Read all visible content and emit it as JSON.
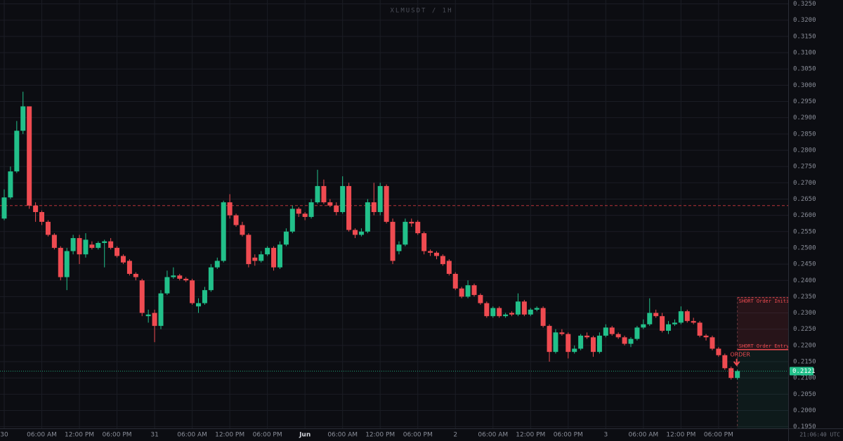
{
  "chart_data": {
    "type": "candlestick",
    "title": "XLMUSDT / 1H",
    "categories": [
      "30",
      null,
      null,
      null,
      null,
      null,
      "06:00 AM",
      null,
      null,
      null,
      null,
      null,
      "12:00 PM",
      null,
      null,
      null,
      null,
      null,
      "06:00 PM",
      null,
      null,
      null,
      null,
      null,
      "31",
      null,
      null,
      null,
      null,
      null,
      "06:00 AM",
      null,
      null,
      null,
      null,
      null,
      "12:00 PM",
      null,
      null,
      null,
      null,
      null,
      "06:00 PM",
      null,
      null,
      null,
      null,
      null,
      "Jun",
      null,
      null,
      null,
      null,
      null,
      "06:00 AM",
      null,
      null,
      null,
      null,
      null,
      "12:00 PM",
      null,
      null,
      null,
      null,
      null,
      "06:00 PM",
      null,
      null,
      null,
      null,
      null,
      "2",
      null,
      null,
      null,
      null,
      null,
      "06:00 AM",
      null,
      null,
      null,
      null,
      null,
      "12:00 PM",
      null,
      null,
      null,
      null,
      null,
      "06:00 PM",
      null,
      null,
      null,
      null,
      null,
      "3",
      null,
      null,
      null,
      null,
      null,
      "06:00 AM",
      null,
      null,
      null,
      null,
      null,
      "12:00 PM",
      null,
      null,
      null,
      null,
      null,
      "06:00 PM",
      null,
      null,
      null
    ],
    "open": [
      0.259,
      0.2655,
      0.2735,
      0.286,
      0.2935,
      0.263,
      0.261,
      0.258,
      0.254,
      0.25,
      0.241,
      0.249,
      0.253,
      0.248,
      0.251,
      0.25,
      0.2515,
      0.252,
      0.25,
      0.2475,
      0.246,
      0.242,
      0.24,
      0.229,
      0.23,
      0.226,
      0.236,
      0.241,
      0.2415,
      0.2405,
      0.24,
      0.232,
      0.233,
      0.237,
      0.244,
      0.246,
      0.264,
      0.26,
      0.257,
      0.254,
      0.247,
      0.246,
      0.248,
      0.25,
      0.244,
      0.251,
      0.255,
      0.262,
      0.2605,
      0.2595,
      0.264,
      0.269,
      0.264,
      0.263,
      0.261,
      0.269,
      0.2555,
      0.254,
      0.255,
      0.264,
      0.261,
      0.269,
      0.258,
      0.249,
      0.251,
      0.258,
      0.258,
      0.2545,
      0.249,
      0.2485,
      0.2475,
      0.246,
      0.242,
      0.2375,
      0.235,
      0.2385,
      0.2355,
      0.233,
      0.229,
      0.2315,
      0.229,
      0.23,
      0.2295,
      0.2335,
      0.2295,
      0.231,
      0.2315,
      0.226,
      0.218,
      0.224,
      0.2235,
      0.218,
      0.219,
      0.223,
      0.2225,
      0.218,
      0.223,
      0.2255,
      0.2235,
      0.2225,
      0.2205,
      0.222,
      0.2255,
      0.2265,
      0.23,
      0.229,
      0.2245,
      0.2265,
      0.227,
      0.2305,
      0.2275,
      0.227,
      0.223,
      0.2225,
      0.219,
      0.217,
      0.213,
      0.21
    ],
    "high": [
      0.268,
      0.275,
      0.289,
      0.298,
      0.2935,
      0.264,
      0.2615,
      0.2585,
      0.2545,
      0.2505,
      0.25,
      0.254,
      0.254,
      0.2545,
      0.252,
      0.252,
      0.2525,
      0.253,
      0.2505,
      0.248,
      0.2465,
      0.2425,
      0.2405,
      0.231,
      0.231,
      0.237,
      0.243,
      0.244,
      0.242,
      0.241,
      0.2405,
      0.2345,
      0.238,
      0.245,
      0.247,
      0.2645,
      0.2665,
      0.2605,
      0.258,
      0.2545,
      0.248,
      0.249,
      0.2505,
      0.2505,
      0.252,
      0.256,
      0.263,
      0.2625,
      0.261,
      0.265,
      0.274,
      0.271,
      0.265,
      0.264,
      0.272,
      0.27,
      0.256,
      0.256,
      0.265,
      0.27,
      0.27,
      0.2695,
      0.259,
      0.252,
      0.259,
      0.259,
      0.2585,
      0.255,
      0.2495,
      0.249,
      0.248,
      0.2465,
      0.2425,
      0.238,
      0.24,
      0.239,
      0.236,
      0.2335,
      0.232,
      0.232,
      0.23,
      0.2305,
      0.236,
      0.234,
      0.2315,
      0.232,
      0.232,
      0.2265,
      0.225,
      0.225,
      0.224,
      0.22,
      0.2235,
      0.224,
      0.223,
      0.224,
      0.2265,
      0.226,
      0.224,
      0.223,
      0.2225,
      0.226,
      0.228,
      0.2345,
      0.231,
      0.23,
      0.2275,
      0.228,
      0.232,
      0.231,
      0.2285,
      0.2275,
      0.2235,
      0.223,
      0.2195,
      0.2175,
      0.2135,
      0.2125
    ],
    "low": [
      0.2585,
      0.265,
      0.273,
      0.285,
      0.262,
      0.258,
      0.257,
      0.2535,
      0.2495,
      0.24,
      0.237,
      0.248,
      0.245,
      0.247,
      0.2495,
      0.2495,
      0.244,
      0.2495,
      0.247,
      0.245,
      0.2415,
      0.24,
      0.229,
      0.227,
      0.221,
      0.225,
      0.2355,
      0.2405,
      0.24,
      0.2395,
      0.2325,
      0.23,
      0.2325,
      0.2365,
      0.2435,
      0.2455,
      0.259,
      0.2565,
      0.2535,
      0.244,
      0.2445,
      0.2455,
      0.2475,
      0.243,
      0.2435,
      0.2505,
      0.2545,
      0.2595,
      0.2585,
      0.259,
      0.2635,
      0.2635,
      0.2625,
      0.26,
      0.2605,
      0.255,
      0.253,
      0.2535,
      0.2545,
      0.26,
      0.26,
      0.2575,
      0.245,
      0.248,
      0.2505,
      0.2565,
      0.254,
      0.248,
      0.2475,
      0.2465,
      0.2445,
      0.2415,
      0.237,
      0.2345,
      0.2345,
      0.235,
      0.2325,
      0.2285,
      0.2285,
      0.2285,
      0.2285,
      0.229,
      0.229,
      0.229,
      0.229,
      0.2305,
      0.2255,
      0.215,
      0.2175,
      0.223,
      0.216,
      0.2175,
      0.2185,
      0.222,
      0.2165,
      0.2175,
      0.2225,
      0.223,
      0.222,
      0.22,
      0.2195,
      0.2215,
      0.225,
      0.226,
      0.2285,
      0.224,
      0.2235,
      0.226,
      0.2265,
      0.227,
      0.2265,
      0.2225,
      0.2215,
      0.2185,
      0.2165,
      0.2125,
      0.2095,
      0.2095
    ],
    "close": [
      0.2655,
      0.2735,
      0.286,
      0.2935,
      0.263,
      0.261,
      0.258,
      0.254,
      0.25,
      0.241,
      0.249,
      0.253,
      0.248,
      0.2525,
      0.25,
      0.2515,
      0.252,
      0.25,
      0.2475,
      0.2455,
      0.242,
      0.241,
      0.23,
      0.2295,
      0.226,
      0.236,
      0.241,
      0.2415,
      0.2405,
      0.24,
      0.233,
      0.233,
      0.237,
      0.244,
      0.246,
      0.264,
      0.26,
      0.257,
      0.254,
      0.245,
      0.246,
      0.248,
      0.25,
      0.244,
      0.251,
      0.255,
      0.262,
      0.2605,
      0.2595,
      0.264,
      0.269,
      0.264,
      0.263,
      0.261,
      0.269,
      0.2555,
      0.254,
      0.255,
      0.264,
      0.261,
      0.269,
      0.258,
      0.246,
      0.251,
      0.258,
      0.2575,
      0.2545,
      0.249,
      0.2485,
      0.2475,
      0.245,
      0.242,
      0.2375,
      0.235,
      0.2385,
      0.2355,
      0.233,
      0.229,
      0.2315,
      0.229,
      0.2295,
      0.2295,
      0.2335,
      0.2295,
      0.231,
      0.2315,
      0.226,
      0.218,
      0.224,
      0.2235,
      0.218,
      0.219,
      0.223,
      0.2225,
      0.218,
      0.223,
      0.2255,
      0.2235,
      0.2225,
      0.2205,
      0.222,
      0.2255,
      0.2265,
      0.23,
      0.229,
      0.2245,
      0.2265,
      0.227,
      0.2305,
      0.2275,
      0.227,
      0.223,
      0.2225,
      0.219,
      0.217,
      0.213,
      0.21,
      0.2121
    ],
    "up_color": "#22c08a",
    "down_color": "#ef4b51",
    "ylim": [
      0.1945,
      0.3262
    ],
    "yticks": [
      {
        "value": 0.195,
        "label": "0.1950"
      },
      {
        "value": 0.2,
        "label": "0.2000"
      },
      {
        "value": 0.205,
        "label": "0.2050"
      },
      {
        "value": 0.21,
        "label": "0.2100"
      },
      {
        "value": 0.215,
        "label": "0.2150"
      },
      {
        "value": 0.22,
        "label": "0.2200"
      },
      {
        "value": 0.225,
        "label": "0.2250"
      },
      {
        "value": 0.23,
        "label": "0.2300"
      },
      {
        "value": 0.235,
        "label": "0.2350"
      },
      {
        "value": 0.24,
        "label": "0.2400"
      },
      {
        "value": 0.245,
        "label": "0.2450"
      },
      {
        "value": 0.25,
        "label": "0.2500"
      },
      {
        "value": 0.255,
        "label": "0.2550"
      },
      {
        "value": 0.26,
        "label": "0.2600"
      },
      {
        "value": 0.265,
        "label": "0.2650"
      },
      {
        "value": 0.27,
        "label": "0.2700"
      },
      {
        "value": 0.275,
        "label": "0.2750"
      },
      {
        "value": 0.28,
        "label": "0.2800"
      },
      {
        "value": 0.285,
        "label": "0.2850"
      },
      {
        "value": 0.29,
        "label": "0.2900"
      },
      {
        "value": 0.295,
        "label": "0.2950"
      },
      {
        "value": 0.3,
        "label": "0.3000"
      },
      {
        "value": 0.305,
        "label": "0.3050"
      },
      {
        "value": 0.31,
        "label": "0.3100"
      },
      {
        "value": 0.315,
        "label": "0.3150"
      },
      {
        "value": 0.32,
        "label": "0.3200"
      },
      {
        "value": 0.325,
        "label": "0.3250"
      }
    ],
    "grid": true,
    "ref_line": 0.263,
    "last_price": {
      "value": 0.2121,
      "label": "0.2121"
    },
    "position": {
      "entry": 0.2187,
      "entry_label": "SHORT Order Entry",
      "stop": 0.2347,
      "stop_label": "SHORT Order Initial"
    },
    "order_label": "ORDER",
    "clock": "21:06:40 UTC"
  }
}
